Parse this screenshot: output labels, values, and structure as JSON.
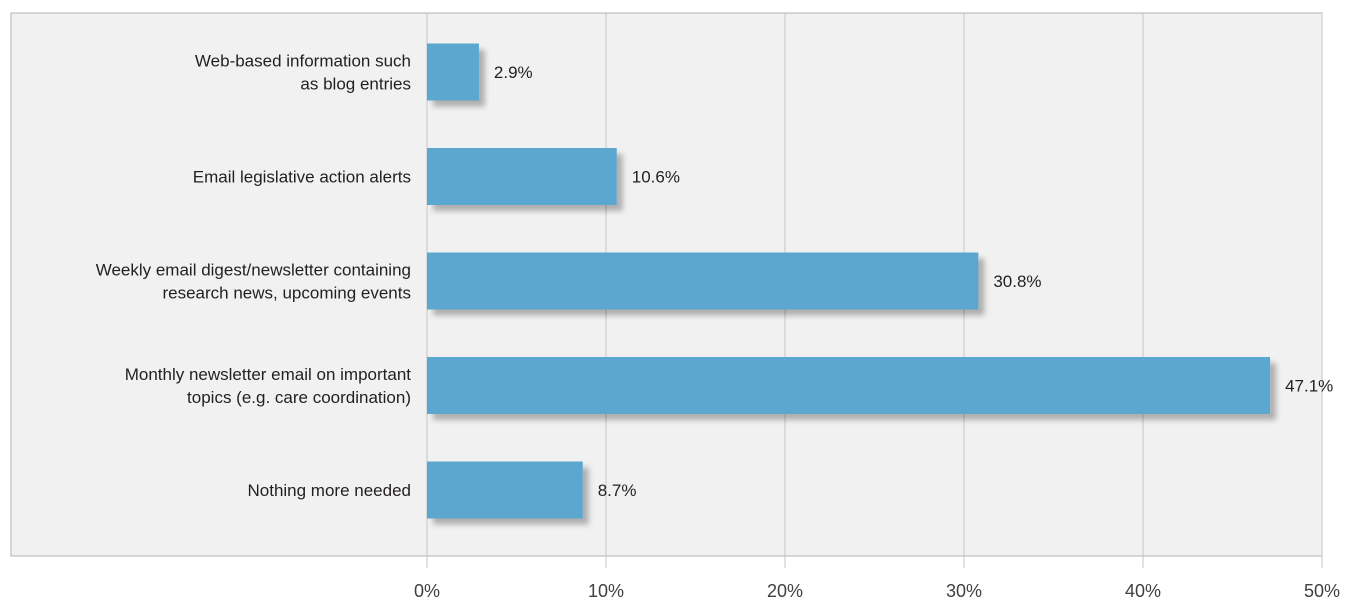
{
  "chart_data": {
    "type": "bar",
    "orientation": "horizontal",
    "categories": [
      [
        "Web-based information such",
        "as blog entries"
      ],
      [
        "Email legislative action alerts"
      ],
      [
        "Weekly email digest/newsletter containing",
        "research news, upcoming events"
      ],
      [
        "Monthly newsletter email on important",
        "topics (e.g. care coordination)"
      ],
      [
        "Nothing more needed"
      ]
    ],
    "values": [
      2.9,
      10.6,
      30.8,
      47.1,
      8.7
    ],
    "value_labels": [
      "2.9%",
      "10.6%",
      "30.8%",
      "47.1%",
      "8.7%"
    ],
    "xlim": [
      0,
      50
    ],
    "x_ticks": [
      0,
      10,
      20,
      30,
      40,
      50
    ],
    "x_tick_labels": [
      "0%",
      "10%",
      "20%",
      "30%",
      "40%",
      "50%"
    ],
    "grid": "vertical",
    "legend": "none",
    "colors": {
      "bar": "#5ba7cf",
      "bar_shadow": "#c9c9c9",
      "plot_background": "#f1f1f1",
      "plot_border": "#b5b5b5",
      "gridline": "#c6c6c6"
    }
  }
}
